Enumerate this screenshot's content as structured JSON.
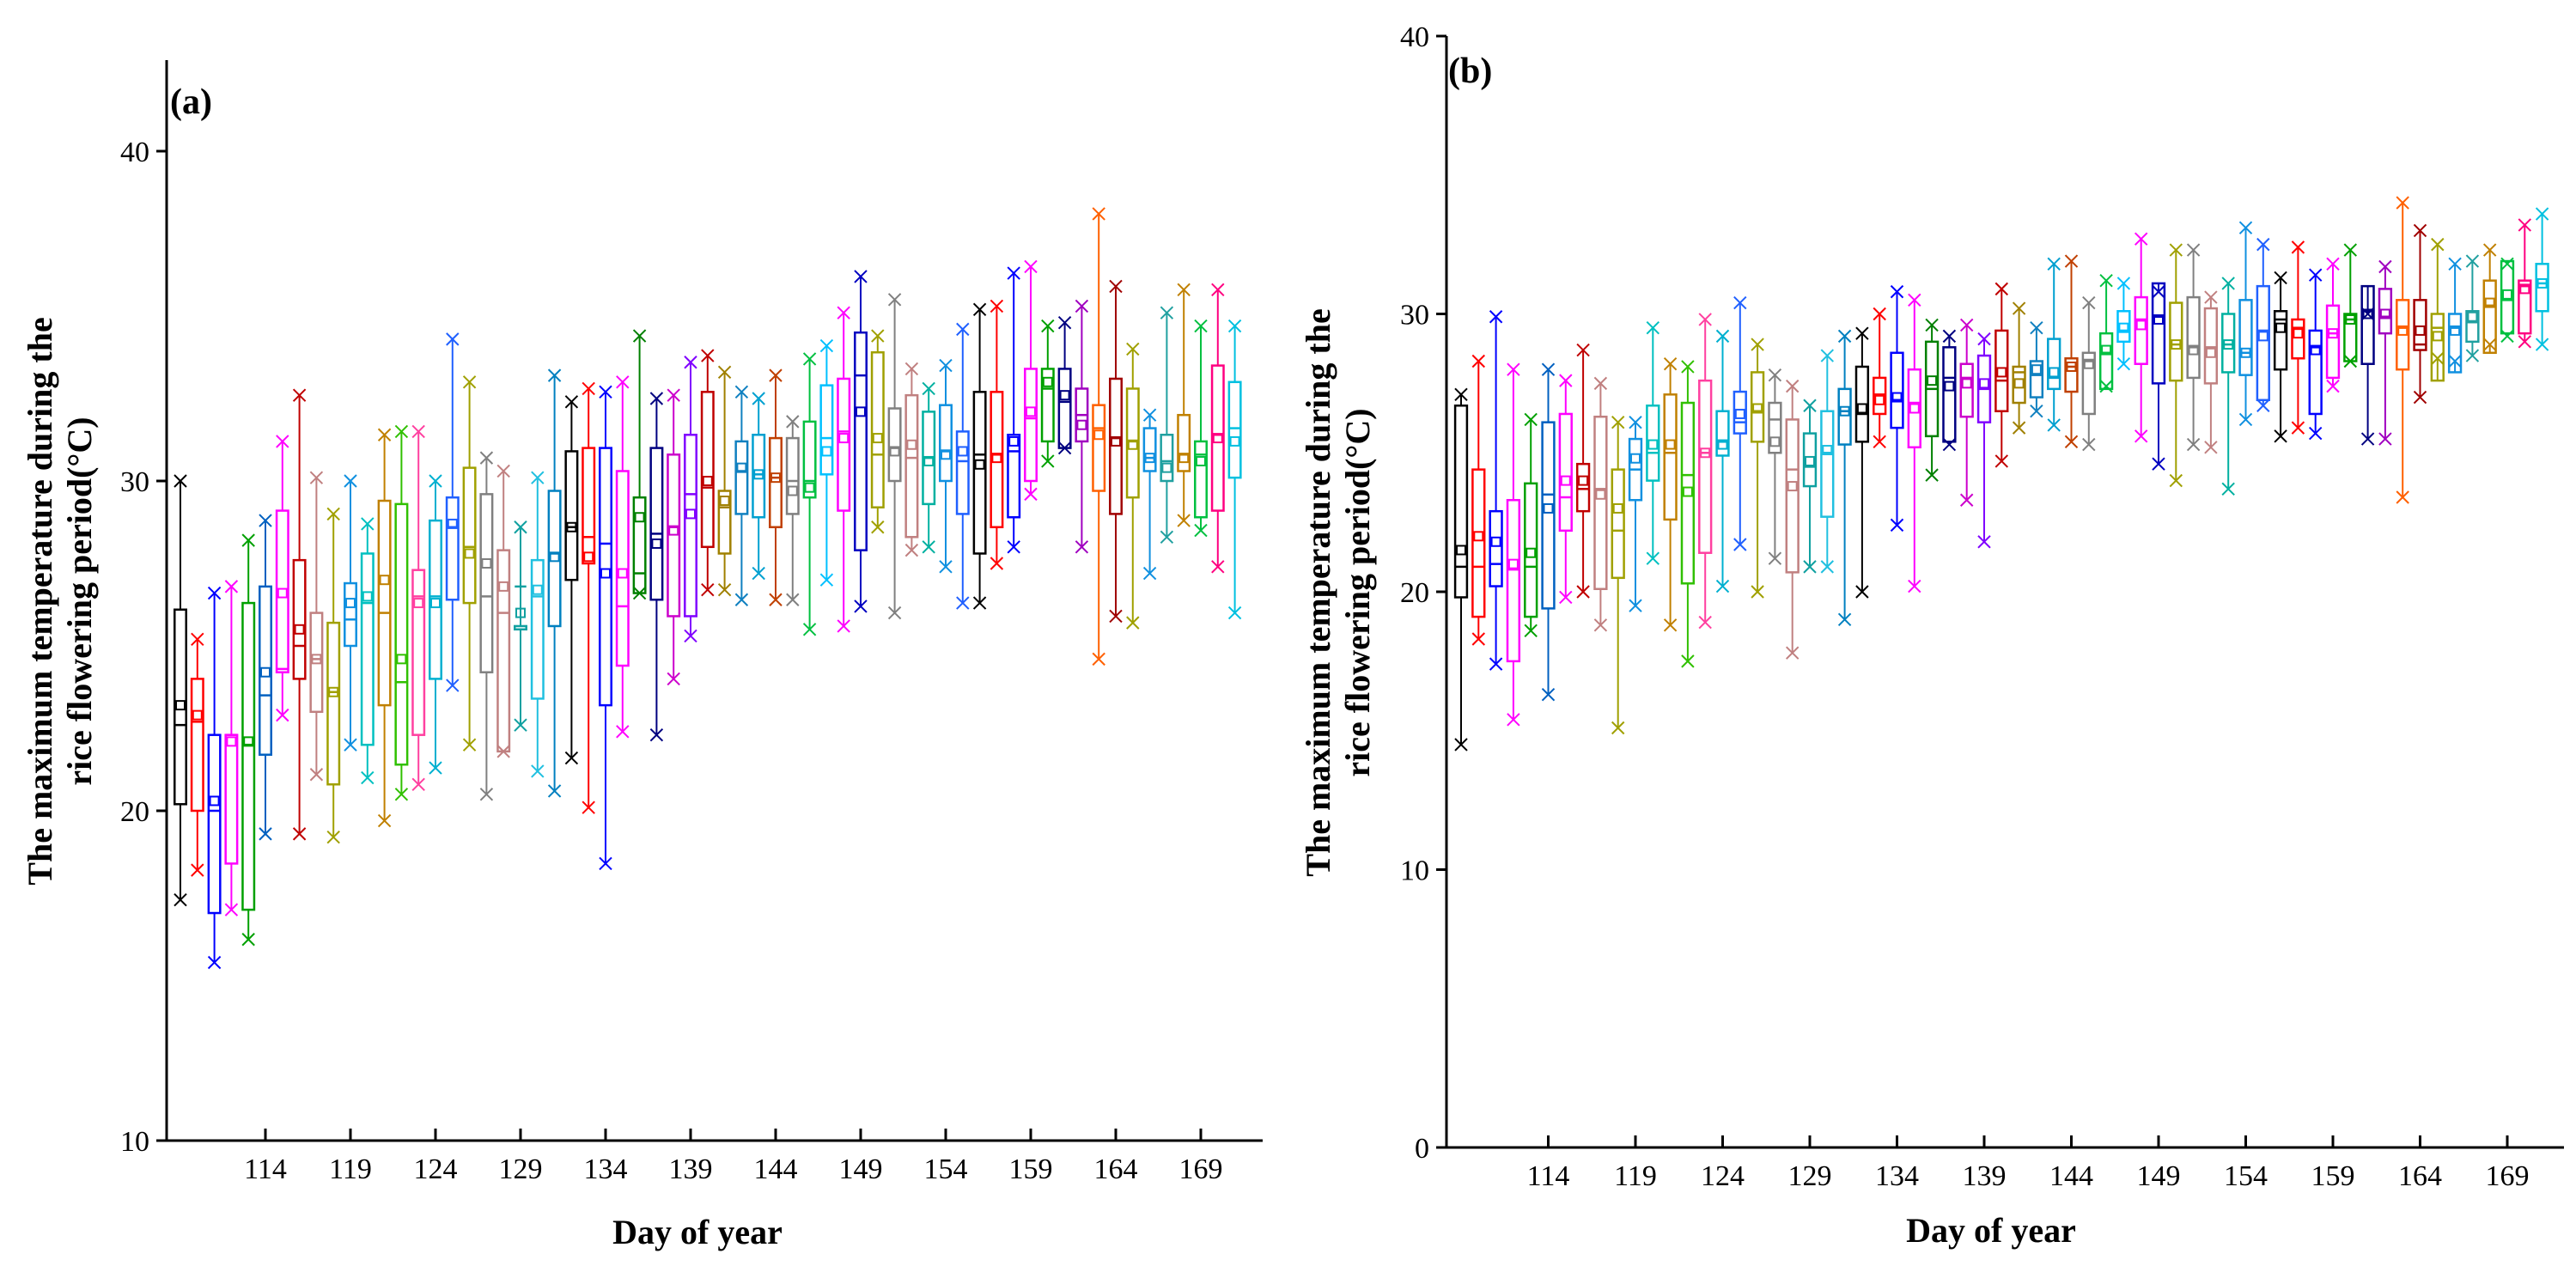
{
  "chart_data": [
    {
      "panel_label": "(a)",
      "type": "box",
      "xlabel": "Day of year",
      "ylabel_line1": "The maximum temperature during the",
      "ylabel_line2": "rice flowering period(°C)",
      "ylim": [
        10,
        43
      ],
      "yticks": [
        10,
        20,
        30,
        40
      ],
      "xticks": [
        114,
        119,
        124,
        129,
        134,
        139,
        144,
        149,
        154,
        159,
        164,
        169
      ],
      "days": [
        109,
        110,
        111,
        112,
        113,
        114,
        115,
        116,
        117,
        118,
        119,
        120,
        121,
        122,
        123,
        124,
        125,
        126,
        127,
        128,
        129,
        130,
        131,
        132,
        133,
        134,
        135,
        136,
        137,
        138,
        139,
        140,
        141,
        142,
        143,
        144,
        145,
        146,
        147,
        148,
        149,
        150,
        151,
        152,
        153,
        154,
        155,
        156,
        157,
        158,
        159,
        160,
        161,
        162,
        163,
        164,
        165,
        166,
        167,
        168,
        169,
        170,
        171
      ],
      "q1": [
        20.2,
        20.0,
        16.9,
        18.4,
        17.0,
        21.7,
        24.2,
        24.0,
        23.0,
        20.8,
        25.0,
        22.0,
        23.2,
        21.4,
        22.3,
        24.0,
        26.4,
        26.3,
        24.2,
        21.8,
        25.5,
        23.4,
        25.6,
        27.0,
        27.5,
        23.2,
        24.4,
        26.6,
        26.4,
        25.9,
        25.9,
        28.0,
        27.8,
        29.0,
        28.9,
        28.6,
        29.0,
        29.5,
        30.2,
        29.1,
        27.9,
        29.2,
        30.0,
        28.3,
        29.3,
        30.0,
        29.0,
        27.8,
        28.6,
        28.9,
        30.0,
        31.2,
        31.0,
        31.2,
        29.7,
        29.0,
        29.5,
        30.3,
        30.0,
        30.3,
        28.9,
        29.1,
        30.1
      ],
      "q3": [
        26.1,
        24.0,
        22.3,
        22.3,
        26.3,
        26.8,
        29.1,
        27.6,
        26.0,
        25.7,
        26.9,
        27.8,
        29.4,
        29.3,
        27.3,
        28.8,
        29.5,
        30.4,
        29.6,
        27.9,
        25.6,
        27.6,
        29.7,
        30.9,
        31.0,
        31.0,
        30.3,
        29.5,
        31.0,
        30.8,
        31.4,
        32.7,
        29.7,
        31.2,
        31.4,
        31.3,
        31.3,
        31.8,
        32.9,
        33.1,
        34.5,
        33.9,
        32.2,
        32.6,
        32.1,
        32.3,
        31.5,
        32.7,
        32.7,
        31.4,
        33.4,
        33.4,
        33.4,
        32.8,
        32.3,
        33.1,
        32.8,
        31.6,
        31.4,
        32.0,
        31.2,
        33.5,
        33.0
      ],
      "median": [
        22.6,
        22.7,
        20.0,
        22.3,
        22.0,
        23.5,
        24.3,
        25.0,
        24.6,
        23.6,
        25.8,
        26.3,
        26.0,
        23.9,
        26.5,
        26.5,
        28.6,
        28.0,
        26.5,
        26.0,
        26.8,
        26.5,
        27.8,
        28.6,
        28.3,
        28.1,
        26.2,
        27.2,
        28.4,
        28.6,
        29.6,
        29.8,
        29.2,
        30.3,
        30.2,
        30.1,
        30.0,
        30.0,
        31.3,
        31.5,
        33.2,
        30.8,
        31.0,
        30.7,
        30.7,
        30.9,
        30.6,
        30.8,
        30.8,
        30.9,
        31.9,
        32.8,
        32.4,
        32.0,
        31.6,
        31.3,
        31.2,
        30.7,
        30.6,
        30.8,
        30.8,
        31.4,
        31.6
      ],
      "mean": [
        23.2,
        22.9,
        20.3,
        22.1,
        22.1,
        24.2,
        26.6,
        25.5,
        24.6,
        23.6,
        26.3,
        26.5,
        27.0,
        24.6,
        26.3,
        26.3,
        28.7,
        27.8,
        27.5,
        26.8,
        26.0,
        26.7,
        27.7,
        28.6,
        27.7,
        27.2,
        27.2,
        28.9,
        28.1,
        28.5,
        29.0,
        30.0,
        29.4,
        30.4,
        30.2,
        30.1,
        29.7,
        29.8,
        30.9,
        31.3,
        32.1,
        31.3,
        30.9,
        31.1,
        30.6,
        30.8,
        30.9,
        30.5,
        30.7,
        31.2,
        32.1,
        33.0,
        32.6,
        31.7,
        31.4,
        31.2,
        31.1,
        30.7,
        30.4,
        30.7,
        30.6,
        31.3,
        31.2
      ],
      "whisker_low": [
        17.3,
        18.2,
        15.4,
        17.0,
        16.1,
        19.3,
        22.9,
        19.3,
        21.1,
        19.2,
        22.0,
        21.0,
        19.7,
        20.5,
        20.8,
        21.3,
        23.8,
        22.0,
        20.5,
        21.8,
        22.6,
        21.2,
        20.6,
        21.6,
        20.1,
        18.4,
        22.4,
        26.6,
        22.3,
        24.0,
        25.3,
        26.7,
        26.7,
        26.4,
        27.2,
        26.4,
        26.4,
        25.5,
        27.0,
        25.6,
        26.2,
        28.6,
        26.0,
        27.9,
        28.0,
        27.4,
        26.3,
        26.3,
        27.5,
        28.0,
        29.6,
        30.6,
        31.0,
        28.0,
        24.6,
        25.9,
        25.7,
        27.2,
        28.3,
        28.8,
        28.5,
        27.4,
        26.0
      ],
      "whisker_high": [
        30.0,
        25.2,
        26.6,
        26.8,
        28.2,
        28.8,
        31.2,
        32.6,
        30.1,
        29.0,
        30.0,
        28.7,
        31.4,
        31.5,
        31.5,
        30.0,
        34.3,
        33.0,
        30.7,
        30.3,
        28.6,
        30.1,
        33.2,
        32.4,
        32.8,
        32.7,
        33.0,
        34.4,
        32.5,
        32.6,
        33.6,
        33.8,
        33.3,
        32.7,
        32.5,
        33.2,
        31.8,
        33.7,
        34.1,
        35.1,
        36.2,
        34.4,
        35.5,
        33.4,
        32.8,
        33.5,
        34.6,
        35.2,
        35.3,
        36.3,
        36.5,
        34.7,
        34.8,
        35.3,
        38.1,
        35.9,
        34.0,
        32.0,
        35.1,
        35.8,
        34.7,
        35.8,
        34.7
      ]
    },
    {
      "panel_label": "(b)",
      "type": "box",
      "xlabel": "Day of year",
      "ylabel_line1": "The maximum temperature during the",
      "ylabel_line2": "rice flowering period(°C)",
      "ylim": [
        0,
        40
      ],
      "yticks": [
        0,
        10,
        20,
        30,
        40
      ],
      "xticks": [
        114,
        119,
        124,
        129,
        134,
        139,
        144,
        149,
        154,
        159,
        164,
        169
      ],
      "days": [
        109,
        110,
        111,
        112,
        113,
        114,
        115,
        116,
        117,
        118,
        119,
        120,
        121,
        122,
        123,
        124,
        125,
        126,
        127,
        128,
        129,
        130,
        131,
        132,
        133,
        134,
        135,
        136,
        137,
        138,
        139,
        140,
        141,
        142,
        143,
        144,
        145,
        146,
        147,
        148,
        149,
        150,
        151,
        152,
        153,
        154,
        155,
        156,
        157,
        158,
        159,
        160,
        161,
        162,
        163,
        164,
        165,
        166,
        167,
        168,
        169,
        170,
        171
      ],
      "q1": [
        19.8,
        19.1,
        20.2,
        17.5,
        19.1,
        19.4,
        22.2,
        22.9,
        20.1,
        20.5,
        23.3,
        24.0,
        22.6,
        20.3,
        21.4,
        24.9,
        25.7,
        25.4,
        25.0,
        20.7,
        23.8,
        22.7,
        25.3,
        25.4,
        26.4,
        25.9,
        25.2,
        25.6,
        25.4,
        26.3,
        26.1,
        26.5,
        26.8,
        27.0,
        27.3,
        27.2,
        26.4,
        27.3,
        29.0,
        28.2,
        27.5,
        27.6,
        27.7,
        27.5,
        27.9,
        27.8,
        26.9,
        28.0,
        28.4,
        26.4,
        27.7,
        28.3,
        28.2,
        29.3,
        28.0,
        28.7,
        27.6,
        27.9,
        29.0,
        28.6,
        29.3,
        29.3,
        30.1
      ],
      "q3": [
        26.7,
        24.4,
        22.9,
        23.3,
        23.9,
        26.1,
        26.4,
        24.6,
        26.3,
        24.4,
        25.5,
        26.7,
        27.1,
        26.8,
        27.6,
        26.5,
        27.2,
        27.9,
        26.8,
        26.2,
        25.7,
        26.5,
        27.3,
        28.1,
        27.7,
        28.6,
        28.0,
        29.0,
        28.8,
        28.2,
        28.5,
        29.4,
        28.1,
        28.3,
        29.1,
        28.4,
        28.6,
        29.3,
        30.1,
        30.6,
        31.1,
        30.4,
        30.6,
        30.2,
        30.0,
        30.5,
        31.0,
        30.1,
        29.8,
        29.4,
        30.3,
        30.0,
        31.0,
        30.9,
        30.5,
        30.5,
        30.0,
        30.0,
        30.1,
        31.2,
        31.9,
        31.2,
        31.8
      ],
      "median": [
        20.9,
        20.9,
        21.0,
        20.8,
        20.9,
        23.5,
        23.4,
        23.7,
        23.7,
        22.2,
        24.4,
        25.0,
        25.0,
        24.2,
        25.0,
        25.4,
        26.1,
        26.5,
        26.2,
        24.4,
        24.5,
        25.0,
        26.5,
        26.4,
        27.1,
        26.9,
        26.8,
        27.3,
        27.7,
        27.7,
        27.3,
        27.6,
        27.9,
        27.8,
        27.7,
        28.1,
        28.3,
        28.6,
        29.4,
        29.8,
        29.9,
        28.9,
        28.8,
        28.8,
        28.9,
        28.6,
        29.4,
        29.8,
        29.5,
        28.8,
        29.3,
        29.8,
        30.1,
        29.9,
        29.5,
        28.9,
        29.5,
        29.5,
        29.7,
        30.3,
        30.5,
        31.0,
        31.1
      ],
      "mean": [
        21.5,
        22.0,
        21.8,
        21.0,
        21.4,
        23.0,
        24.0,
        24.0,
        23.5,
        23.0,
        24.8,
        25.3,
        25.3,
        23.6,
        25.0,
        25.3,
        26.4,
        26.6,
        25.4,
        23.8,
        24.7,
        25.1,
        26.5,
        26.6,
        26.9,
        27.0,
        26.6,
        27.6,
        27.4,
        27.5,
        27.5,
        27.9,
        27.5,
        28.0,
        27.9,
        28.1,
        28.2,
        28.7,
        29.5,
        29.6,
        29.8,
        28.9,
        28.7,
        28.6,
        28.9,
        28.6,
        29.2,
        29.5,
        29.3,
        28.7,
        29.3,
        29.8,
        30.0,
        30.0,
        29.4,
        29.4,
        29.2,
        29.4,
        29.9,
        30.4,
        30.7,
        30.9,
        31.1
      ],
      "whisker_low": [
        14.5,
        18.3,
        17.4,
        15.4,
        18.6,
        16.3,
        19.8,
        20.0,
        18.8,
        15.1,
        19.5,
        21.2,
        18.8,
        17.5,
        18.9,
        20.2,
        21.7,
        20.0,
        21.2,
        17.8,
        20.9,
        20.9,
        19.0,
        20.0,
        25.4,
        22.4,
        20.2,
        24.2,
        25.3,
        23.3,
        21.8,
        24.7,
        25.9,
        26.5,
        26.0,
        25.4,
        25.3,
        27.4,
        28.2,
        25.6,
        24.6,
        24.0,
        25.3,
        25.2,
        23.7,
        26.2,
        26.7,
        25.6,
        25.9,
        25.7,
        27.4,
        28.3,
        25.5,
        25.5,
        23.4,
        27.0,
        28.4,
        28.3,
        28.5,
        28.9,
        29.2,
        29.0,
        28.9
      ],
      "whisker_high": [
        27.1,
        28.3,
        29.9,
        28.0,
        26.2,
        28.0,
        27.6,
        28.7,
        27.5,
        26.1,
        26.1,
        29.5,
        28.2,
        28.1,
        29.8,
        29.2,
        30.4,
        28.9,
        27.8,
        27.4,
        26.7,
        28.5,
        29.2,
        29.3,
        30.0,
        30.8,
        30.5,
        29.6,
        29.2,
        29.6,
        29.1,
        30.9,
        30.2,
        29.5,
        31.8,
        31.9,
        30.4,
        31.2,
        31.1,
        32.7,
        30.8,
        32.3,
        32.3,
        30.6,
        31.1,
        33.1,
        32.5,
        31.3,
        32.4,
        31.4,
        31.8,
        32.3,
        30.0,
        31.7,
        34.0,
        33.0,
        32.5,
        31.8,
        31.9,
        32.3,
        31.8,
        33.2,
        33.6
      ]
    }
  ],
  "colors": [
    "#000000",
    "#ff0000",
    "#0000ff",
    "#ff00ff",
    "#00a000",
    "#0060c0",
    "#ff00ff",
    "#c00000",
    "#c08080",
    "#a0a000",
    "#1090e0",
    "#00c0c0",
    "#c08000",
    "#30c000",
    "#ff40a0",
    "#00b0d0",
    "#2060ff",
    "#a0a000",
    "#808080",
    "#c08080",
    "#10a0a0",
    "#20c0e0",
    "#0080c0",
    "#000000",
    "#ff0000",
    "#0000ff",
    "#ff00ff",
    "#008000",
    "#000080",
    "#cc00cc",
    "#8000ff",
    "#c00000",
    "#a08000",
    "#1080c0",
    "#00a0d0",
    "#c04000",
    "#808080",
    "#00c040",
    "#00c0ff",
    "#ff00ff",
    "#0000c0",
    "#a0a000",
    "#808080",
    "#c08080",
    "#00b0a0",
    "#1090e0",
    "#2060ff",
    "#000000",
    "#ff0000",
    "#0000ff",
    "#ff00ff",
    "#00a000",
    "#000080",
    "#a000c0",
    "#ff6000",
    "#a00000",
    "#a0a000",
    "#1090e0",
    "#20a0a0",
    "#c08000",
    "#00c040",
    "#ff0080",
    "#00c0e0"
  ]
}
